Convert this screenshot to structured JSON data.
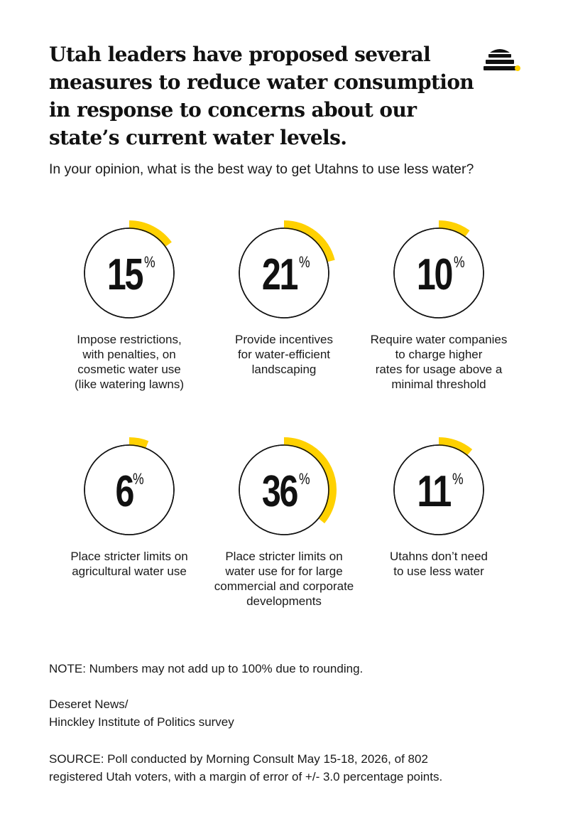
{
  "title": "Utah leaders have proposed several measures to reduce water consumption in response to concerns about our state’s current water levels.",
  "question": "In your opinion, what is the best way to get Utahns to use less water?",
  "colors": {
    "accent": "#FFD100",
    "ring": "#111111",
    "text": "#111111"
  },
  "logo": {
    "icon": "beehive-icon"
  },
  "chart_data": {
    "type": "donut",
    "unit": "%",
    "categories": [
      "Impose restrictions, with penalties, on cosmetic water use (like watering lawns)",
      "Provide incentives for water-efficient landscaping",
      "Require water companies to charge higher rates for usage above a minimal threshold",
      "Place stricter limits on agricultural water use",
      "Place stricter limits on water use for for large commercial and corporate developments",
      "Utahns don’t need to use less water"
    ],
    "values": [
      15,
      21,
      10,
      6,
      36,
      11
    ],
    "items": [
      {
        "value": 15,
        "value_label": "15",
        "label_lines": [
          "Impose restrictions,",
          "with penalties, on",
          "cosmetic water use",
          "(like watering lawns)"
        ]
      },
      {
        "value": 21,
        "value_label": "21",
        "label_lines": [
          "Provide incentives",
          "for water-efficient",
          "landscaping"
        ]
      },
      {
        "value": 10,
        "value_label": "10",
        "label_lines": [
          "Require water companies",
          "to charge higher",
          "rates for usage above a",
          "minimal threshold"
        ]
      },
      {
        "value": 6,
        "value_label": "6",
        "label_lines": [
          "Place stricter limits on",
          "agricultural water use"
        ]
      },
      {
        "value": 36,
        "value_label": "36",
        "label_lines": [
          "Place stricter limits on",
          "water use for for large",
          "commercial and corporate",
          "developments"
        ]
      },
      {
        "value": 11,
        "value_label": "11",
        "label_lines": [
          "Utahns don’t need",
          "to use less water"
        ]
      }
    ],
    "percent_sign": "%"
  },
  "note": "NOTE: Numbers may not add up to 100% due to rounding.",
  "credit_lines": [
    "Deseret News/",
    "Hinckley Institute of Politics survey"
  ],
  "source_lines": [
    "SOURCE: Poll conducted by Morning Consult May 15-18, 2026, of 802",
    "registered Utah voters, with a margin of error of +/- 3.0 percentage points."
  ]
}
